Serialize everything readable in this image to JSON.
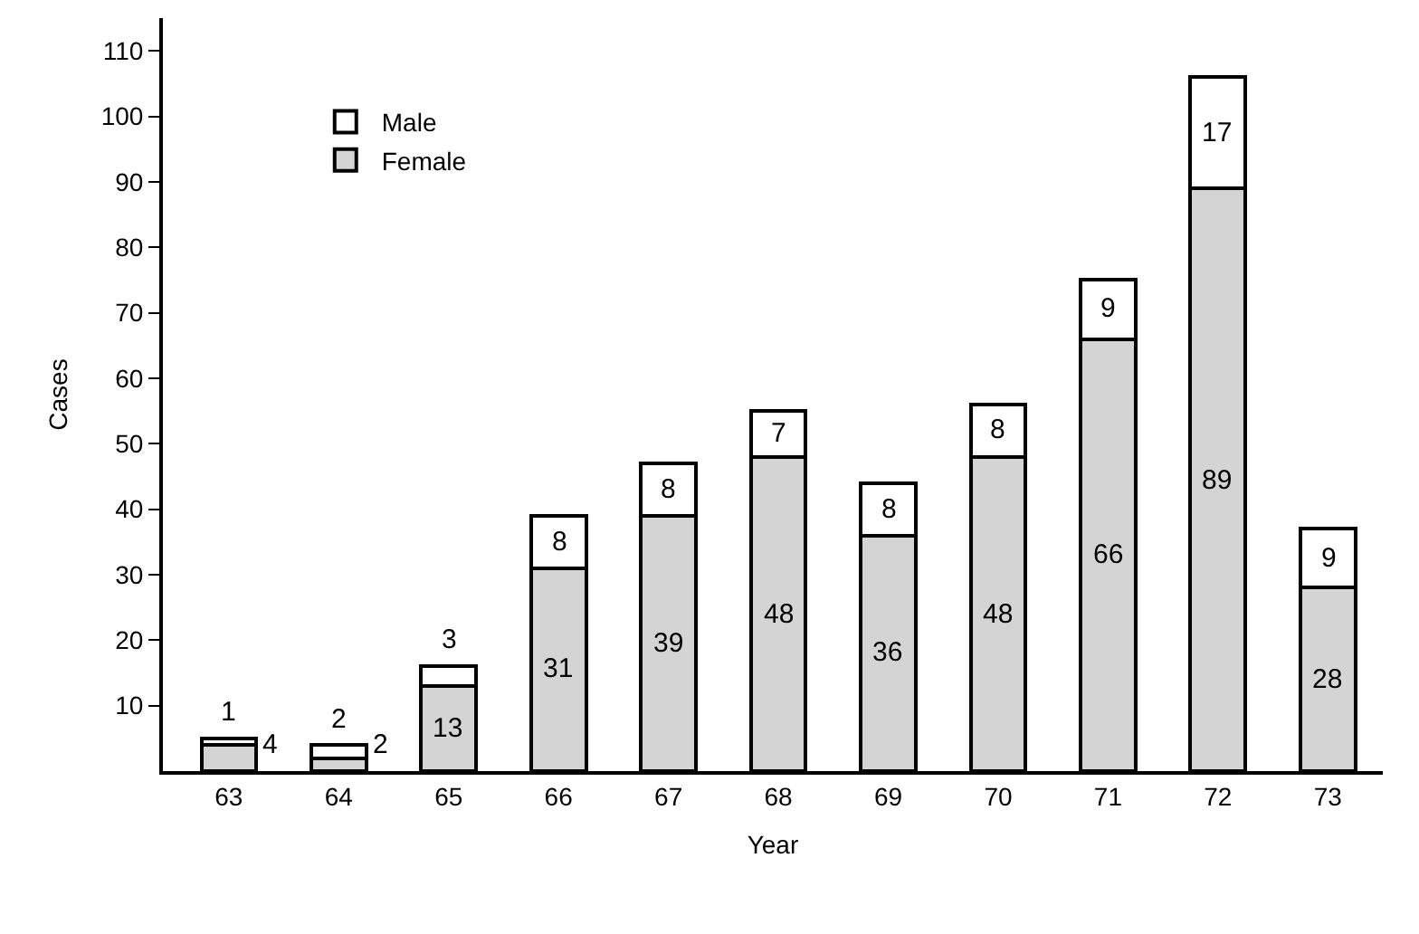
{
  "chart_data": {
    "type": "bar",
    "stacked": true,
    "xlabel": "Year",
    "ylabel": "Cases",
    "categories": [
      "63",
      "64",
      "65",
      "66",
      "67",
      "68",
      "69",
      "70",
      "71",
      "72",
      "73"
    ],
    "series": [
      {
        "name": "Female",
        "color": "#d4d4d4",
        "values": [
          4,
          2,
          13,
          31,
          39,
          48,
          36,
          48,
          66,
          89,
          28
        ]
      },
      {
        "name": "Male",
        "color": "#ffffff",
        "values": [
          1,
          2,
          3,
          8,
          8,
          7,
          8,
          8,
          9,
          17,
          9
        ]
      }
    ],
    "ylim": [
      0,
      115
    ],
    "yticks": [
      10,
      20,
      30,
      40,
      50,
      60,
      70,
      80,
      90,
      100,
      110
    ],
    "data_labels": true,
    "legend": "top left"
  }
}
